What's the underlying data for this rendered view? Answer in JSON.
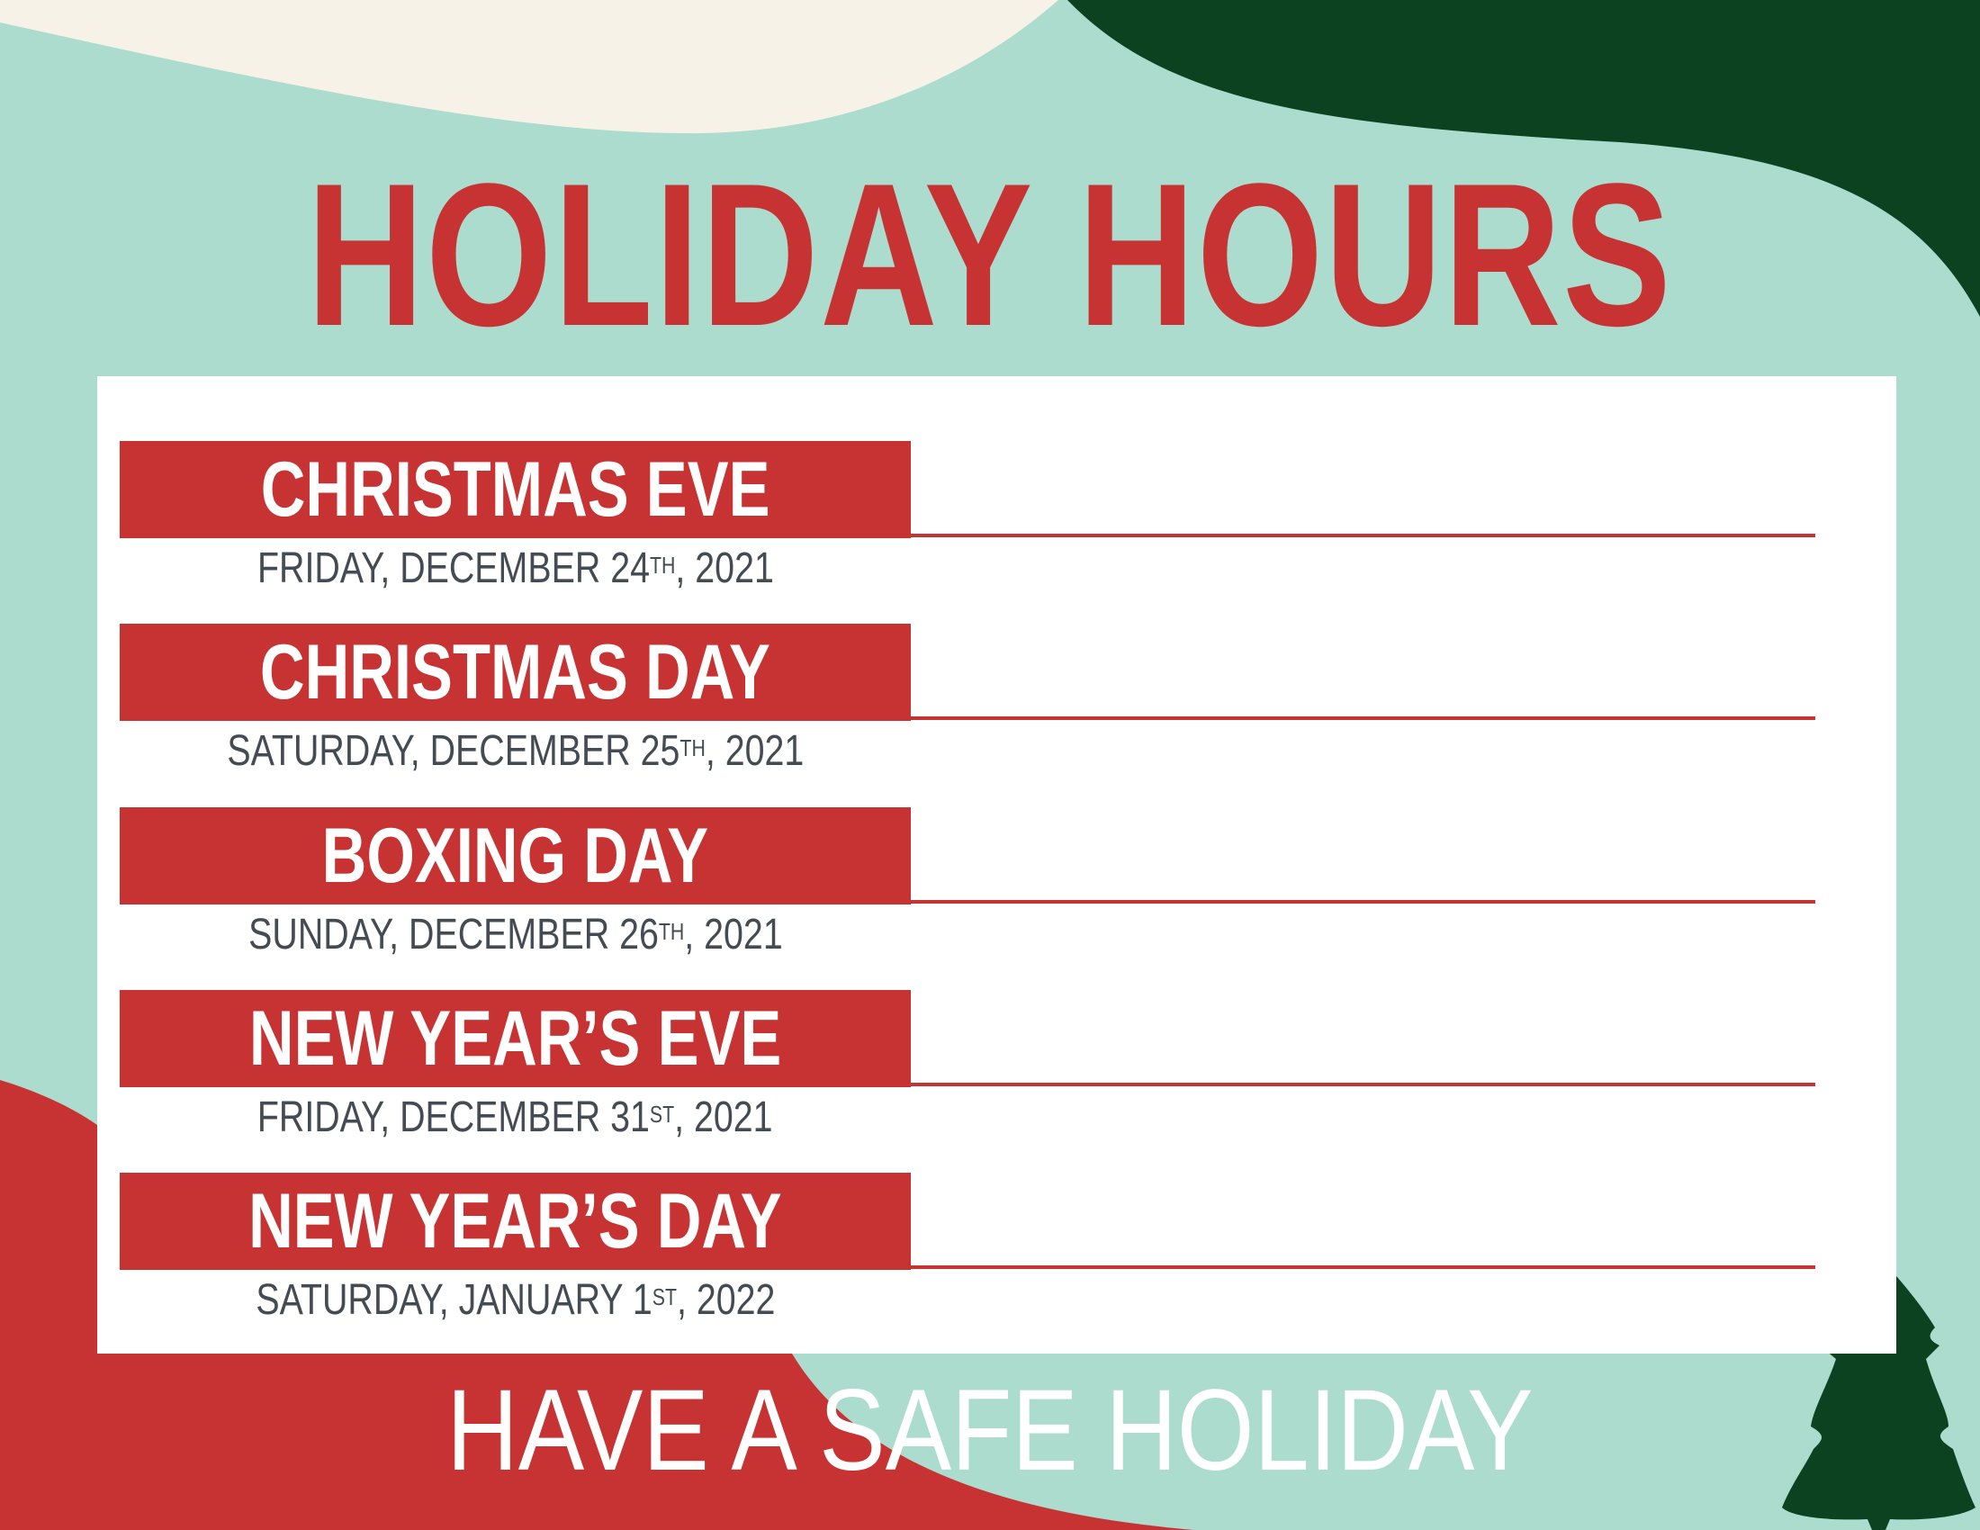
{
  "colors": {
    "mint": "#abdccd",
    "cream": "#f6f2e8",
    "dark_green": "#0c4220",
    "red": "#c73333",
    "text_gray": "#444b52"
  },
  "title": "HOLIDAY HOURS",
  "entries": [
    {
      "name": "CHRISTMAS EVE",
      "date_pre": "FRIDAY, DECEMBER 24",
      "date_sup": "TH",
      "date_post": ", 2021"
    },
    {
      "name": "CHRISTMAS DAY",
      "date_pre": "SATURDAY, DECEMBER 25",
      "date_sup": "TH",
      "date_post": ", 2021"
    },
    {
      "name": "BOXING DAY",
      "date_pre": "SUNDAY, DECEMBER 26",
      "date_sup": "TH",
      "date_post": ", 2021"
    },
    {
      "name": "NEW YEAR’S EVE",
      "date_pre": "FRIDAY, DECEMBER 31",
      "date_sup": "ST",
      "date_post": ", 2021"
    },
    {
      "name": "NEW YEAR’S DAY",
      "date_pre": "SATURDAY, JANUARY 1",
      "date_sup": "ST",
      "date_post": ", 2022"
    }
  ],
  "footer": "HAVE A SAFE HOLIDAY",
  "decor_icons": [
    "christmas-tree-icon"
  ]
}
